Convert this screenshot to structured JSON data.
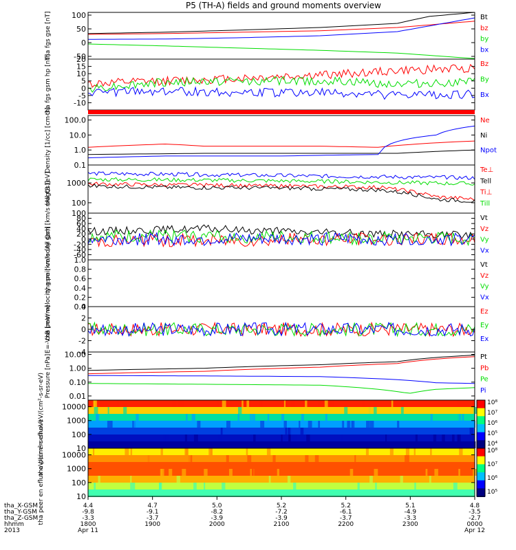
{
  "title": "P5 (TH-A) fields and ground moments overview",
  "colors": {
    "black": "#000000",
    "red": "#ff0000",
    "green": "#00dd00",
    "blue": "#0000ff"
  },
  "chart_data": [
    {
      "type": "line",
      "ylabel": "tha fgs gse [nT]",
      "ylim": [
        -60,
        110
      ],
      "ticks": [
        "100",
        "50",
        "0",
        "-50"
      ],
      "legend": [
        {
          "name": "Bt",
          "color": "black"
        },
        {
          "name": "bz",
          "color": "red"
        },
        {
          "name": "by",
          "color": "green"
        },
        {
          "name": "bx",
          "color": "blue"
        }
      ],
      "series": [
        {
          "name": "Bt",
          "x": [
            0,
            0.2,
            0.4,
            0.6,
            0.8,
            0.88,
            1.0
          ],
          "y": [
            33,
            38,
            46,
            55,
            70,
            95,
            110
          ]
        },
        {
          "name": "bz",
          "x": [
            0,
            0.2,
            0.4,
            0.6,
            0.8,
            1.0
          ],
          "y": [
            30,
            33,
            38,
            43,
            55,
            78
          ]
        },
        {
          "name": "by",
          "x": [
            0,
            0.2,
            0.4,
            0.6,
            0.8,
            1.0
          ],
          "y": [
            -5,
            -12,
            -20,
            -28,
            -38,
            -58
          ]
        },
        {
          "name": "bx",
          "x": [
            0,
            0.2,
            0.4,
            0.6,
            0.8,
            1.0
          ],
          "y": [
            12,
            13,
            18,
            25,
            40,
            90
          ]
        }
      ]
    },
    {
      "type": "line",
      "ylabel": "tha fgs gsm hp [nT]",
      "ylim": [
        -15,
        20
      ],
      "ticks": [
        "20",
        "15",
        "10",
        "5",
        "0",
        "-5",
        "-10"
      ],
      "legend": [
        {
          "name": "Bz",
          "color": "red"
        },
        {
          "name": "By",
          "color": "green"
        },
        {
          "name": "Bx",
          "color": "blue"
        }
      ],
      "series": [
        {
          "name": "Bz",
          "x": [
            0,
            0.2,
            0.4,
            0.6,
            0.8,
            1.0
          ],
          "y": [
            3,
            5,
            7,
            9,
            12,
            14
          ]
        },
        {
          "name": "By",
          "x": [
            0,
            0.2,
            0.4,
            0.6,
            0.8,
            1.0
          ],
          "y": [
            0,
            4,
            5,
            5,
            3,
            4
          ]
        },
        {
          "name": "Bx",
          "x": [
            0,
            0.2,
            0.4,
            0.6,
            0.8,
            1.0
          ],
          "y": [
            -3,
            -2,
            -3,
            -3,
            -5,
            -4
          ]
        }
      ]
    },
    {
      "type": "line",
      "ylabel": "Density [1/cc] [cm-3]",
      "scale": "log",
      "ylim": [
        0.1,
        200
      ],
      "ticks": [
        "100.0",
        "10.0",
        "1.0",
        "0.1"
      ],
      "legend": [
        {
          "name": "Ne",
          "color": "red"
        },
        {
          "name": "Ni",
          "color": "black"
        },
        {
          "name": "Npot",
          "color": "blue"
        }
      ],
      "series": [
        {
          "name": "Ne",
          "x": [
            0,
            0.2,
            0.3,
            0.6,
            0.75,
            0.85,
            1.0
          ],
          "y": [
            1.5,
            2.5,
            1.8,
            1.8,
            1.5,
            2.5,
            4
          ]
        },
        {
          "name": "Ni",
          "x": [
            0,
            0.3,
            0.6,
            0.8,
            1.0
          ],
          "y": [
            0.5,
            0.6,
            0.6,
            0.6,
            1.0
          ]
        },
        {
          "name": "Npot",
          "x": [
            0,
            0.2,
            0.5,
            0.75,
            0.82,
            0.9,
            1.0
          ],
          "y": [
            0.3,
            0.4,
            0.4,
            0.5,
            5,
            10,
            40
          ]
        }
      ]
    },
    {
      "type": "line",
      "ylabel": "magt3 [eV]",
      "scale": "log",
      "ylim": [
        30,
        8000
      ],
      "ticks": [
        "1000",
        "100"
      ],
      "legend": [
        {
          "name": "Te⊥",
          "color": "red"
        },
        {
          "name": "Tell",
          "color": "black"
        },
        {
          "name": "Ti⊥",
          "color": "red"
        },
        {
          "name": "Till",
          "color": "green"
        }
      ],
      "series": [
        {
          "name": "Ti",
          "x": [
            0,
            0.3,
            0.6,
            1.0
          ],
          "y": [
            3000,
            2600,
            2200,
            1800
          ]
        },
        {
          "name": "Till",
          "x": [
            0,
            0.3,
            0.6,
            1.0
          ],
          "y": [
            1500,
            1400,
            1200,
            900
          ]
        },
        {
          "name": "Te",
          "x": [
            0,
            0.2,
            0.5,
            0.75,
            0.9,
            1.0
          ],
          "y": [
            900,
            800,
            700,
            600,
            200,
            150
          ]
        },
        {
          "name": "Tell",
          "x": [
            0,
            0.2,
            0.5,
            0.75,
            0.9,
            1.0
          ],
          "y": [
            700,
            600,
            550,
            450,
            150,
            120
          ]
        }
      ]
    },
    {
      "type": "line",
      "ylabel": "tha peir velocity gsm [km/s (All Qs)]",
      "ylim": [
        -80,
        100
      ],
      "ticks": [
        "100",
        "80",
        "60",
        "40",
        "20",
        "0",
        "-20",
        "-40",
        "-60"
      ],
      "legend": [
        {
          "name": "Vt",
          "color": "black"
        },
        {
          "name": "Vz",
          "color": "red"
        },
        {
          "name": "Vy",
          "color": "green"
        },
        {
          "name": "Vx",
          "color": "blue"
        }
      ],
      "series": [
        {
          "name": "Vt",
          "x": [
            0,
            0.3,
            0.6,
            1.0
          ],
          "y": [
            30,
            40,
            25,
            15
          ]
        },
        {
          "name": "Vz",
          "x": [
            0,
            0.3,
            0.6,
            1.0
          ],
          "y": [
            -5,
            -5,
            0,
            0
          ]
        },
        {
          "name": "Vy",
          "x": [
            0,
            0.3,
            0.6,
            1.0
          ],
          "y": [
            10,
            10,
            5,
            0
          ]
        },
        {
          "name": "Vx",
          "x": [
            0,
            0.3,
            0.6,
            1.0
          ],
          "y": [
            0,
            0,
            0,
            0
          ]
        }
      ]
    },
    {
      "type": "line",
      "ylabel": "tha peer velocity gsm [km/s (All Qs)]",
      "ylim": [
        0,
        1.0
      ],
      "ticks": [
        "1.0",
        "0.8",
        "0.6",
        "0.4",
        "0.2",
        "0.0"
      ],
      "legend": [
        {
          "name": "Vt",
          "color": "black"
        },
        {
          "name": "Vz",
          "color": "red"
        },
        {
          "name": "Vy",
          "color": "green"
        },
        {
          "name": "Vx",
          "color": "blue"
        }
      ],
      "series": []
    },
    {
      "type": "line",
      "ylabel": "E=-VxB [mV/m]",
      "ylim": [
        -4,
        4
      ],
      "ticks": [
        "4",
        "2",
        "0",
        "-2",
        "-4"
      ],
      "legend": [
        {
          "name": "Ez",
          "color": "red"
        },
        {
          "name": "Ey",
          "color": "green"
        },
        {
          "name": "Ex",
          "color": "blue"
        }
      ],
      "series": [
        {
          "name": "Ez",
          "x": [
            0,
            1.0
          ],
          "y": [
            0,
            0
          ]
        },
        {
          "name": "Ey",
          "x": [
            0,
            1.0
          ],
          "y": [
            0,
            0
          ]
        },
        {
          "name": "Ex",
          "x": [
            0,
            1.0
          ],
          "y": [
            0,
            0
          ]
        }
      ]
    },
    {
      "type": "line",
      "ylabel": "Pressure [nPa]",
      "scale": "log",
      "ylim": [
        0.005,
        15
      ],
      "ticks": [
        "10.00",
        "1.00",
        "0.10",
        "0.01"
      ],
      "legend": [
        {
          "name": "Pt",
          "color": "black"
        },
        {
          "name": "Pb",
          "color": "red"
        },
        {
          "name": "Pe",
          "color": "green"
        },
        {
          "name": "Pi",
          "color": "blue"
        }
      ],
      "series": [
        {
          "name": "Pt",
          "x": [
            0,
            0.3,
            0.6,
            0.8,
            1.0
          ],
          "y": [
            0.7,
            1.0,
            1.8,
            3.0,
            9.0
          ]
        },
        {
          "name": "Pb",
          "x": [
            0,
            0.3,
            0.6,
            0.8,
            1.0
          ],
          "y": [
            0.4,
            0.6,
            1.2,
            2.2,
            7.0
          ]
        },
        {
          "name": "Pi",
          "x": [
            0,
            0.3,
            0.6,
            0.8,
            0.9,
            1.0
          ],
          "y": [
            0.3,
            0.28,
            0.25,
            0.15,
            0.09,
            0.08
          ]
        },
        {
          "name": "Pe",
          "x": [
            0,
            0.3,
            0.6,
            0.75,
            0.83,
            0.9,
            1.0
          ],
          "y": [
            0.08,
            0.07,
            0.06,
            0.03,
            0.015,
            0.03,
            0.04
          ]
        }
      ]
    },
    {
      "type": "heatmap",
      "ylabel": "tha peir en eflux eV/(cm²-s-sr-eV)",
      "scale": "log",
      "ylim": [
        10,
        30000
      ],
      "ticks": [
        "10000",
        "1000",
        "100",
        "10"
      ],
      "colorbar": [
        "10⁸",
        "10⁷",
        "10⁶",
        "10⁵",
        "10⁴"
      ]
    },
    {
      "type": "heatmap",
      "ylabel": "tha peer en eflux eV/(cm²-s-sr-eV)",
      "scale": "log",
      "ylim": [
        10,
        30000
      ],
      "ticks": [
        "10000",
        "1000",
        "100",
        "10"
      ],
      "colorbar": [
        "10⁸",
        "10⁷",
        "10⁶",
        "10⁵"
      ]
    }
  ],
  "x_axis": {
    "row_labels": [
      "tha_X-GSM",
      "tha_Y-GSM",
      "tha_Z-GSM",
      "hhmm",
      "2013"
    ],
    "columns": [
      {
        "v": [
          "4.4",
          "-9.8",
          "-3.3",
          "1800",
          "Apr 11"
        ]
      },
      {
        "v": [
          "4.7",
          "-9.1",
          "-3.7",
          "1900",
          ""
        ]
      },
      {
        "v": [
          "5.0",
          "-8.2",
          "-3.9",
          "2000",
          ""
        ]
      },
      {
        "v": [
          "5.2",
          "-7.2",
          "-3.9",
          "2100",
          ""
        ]
      },
      {
        "v": [
          "5.2",
          "-6.1",
          "-3.7",
          "2200",
          ""
        ]
      },
      {
        "v": [
          "5.1",
          "-4.9",
          "-3.3",
          "2300",
          ""
        ]
      },
      {
        "v": [
          "4.8",
          "-3.5",
          "-2.7",
          "0000",
          "Apr 12"
        ]
      }
    ]
  }
}
